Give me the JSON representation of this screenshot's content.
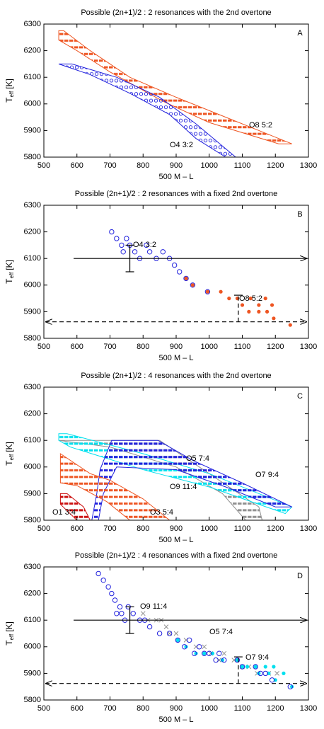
{
  "chart_data": [
    {
      "type": "scatter",
      "title": "Possible (2n+1)/2 : 2 resonances with the 2nd overtone",
      "label": "A",
      "xlabel": "500 M – L",
      "ylabel": {
        "text": "T",
        "subscript": "eff",
        "suffix": "[K]"
      },
      "xlim": [
        500,
        1300
      ],
      "ylim": [
        5800,
        6300
      ],
      "xticks": [
        500,
        600,
        700,
        800,
        900,
        1000,
        1100,
        1200,
        1300
      ],
      "yticks": [
        5800,
        5900,
        6000,
        6100,
        6200,
        6300
      ],
      "series": [
        {
          "shape": "region",
          "fill": "dashes",
          "color": "#ee5522",
          "x": [
            545,
            560,
            640,
            760,
            900,
            1050,
            1250,
            1210,
            1000,
            860,
            700,
            600,
            545
          ],
          "y": [
            6275,
            6275,
            6200,
            6100,
            6025,
            5950,
            5850,
            5850,
            5930,
            6010,
            6120,
            6200,
            6240
          ]
        },
        {
          "shape": "region",
          "fill": "circles",
          "color": "#2222dd",
          "x": [
            545,
            585,
            720,
            850,
            960,
            1080,
            1050,
            960,
            880,
            760,
            640,
            545
          ],
          "y": [
            6150,
            6150,
            6100,
            6025,
            5925,
            5800,
            5800,
            5870,
            5960,
            6040,
            6110,
            6150
          ]
        }
      ],
      "annotations": [
        "O8 5:2",
        "O4 3:2"
      ]
    },
    {
      "type": "scatter",
      "title": "Possible (2n+1)/2 : 2 resonances with a fixed 2nd overtone",
      "label": "B",
      "xlabel": "500 M – L",
      "ylabel": {
        "text": "T",
        "subscript": "eff",
        "suffix": "[K]"
      },
      "xlim": [
        500,
        1300
      ],
      "ylim": [
        5800,
        6300
      ],
      "xticks": [
        500,
        600,
        700,
        800,
        900,
        1000,
        1100,
        1200,
        1300
      ],
      "yticks": [
        5800,
        5900,
        6000,
        6100,
        6200,
        6300
      ],
      "series": [
        {
          "shape": "points",
          "marker": "circle",
          "color": "#2222dd",
          "x": [
            705,
            720,
            735,
            750,
            740,
            760,
            775,
            790,
            810,
            820,
            840,
            860,
            880,
            895,
            910,
            930,
            950,
            995
          ],
          "y": [
            6200,
            6175,
            6150,
            6175,
            6125,
            6150,
            6125,
            6100,
            6150,
            6125,
            6100,
            6125,
            6100,
            6075,
            6050,
            6025,
            6000,
            5975
          ]
        },
        {
          "shape": "points",
          "marker": "dot",
          "color": "#ee5522",
          "x": [
            930,
            950,
            995,
            1035,
            1060,
            1085,
            1100,
            1125,
            1150,
            1170,
            1190,
            1120,
            1150,
            1175,
            1195,
            1245
          ],
          "y": [
            6025,
            6000,
            5975,
            5975,
            5950,
            5950,
            5925,
            5950,
            5925,
            5950,
            5925,
            5900,
            5900,
            5900,
            5875,
            5850
          ]
        }
      ],
      "limits": [
        {
          "x": 760,
          "y": 6100,
          "ylow": 6050,
          "yhigh": 6150,
          "xlow": 590,
          "xhigh": 1300,
          "arrows": "right",
          "dashed": false
        },
        {
          "x": 1088,
          "y": 5862,
          "ylow": 5862,
          "yhigh": 5962,
          "xlow": 500,
          "xhigh": 1300,
          "arrows": "both",
          "dashed": true
        }
      ],
      "annotations": [
        "O4 3:2",
        "O8 5:2"
      ]
    },
    {
      "type": "scatter",
      "title": "Possible (2n+1)/2 : 4 resonances with the 2nd overtone",
      "label": "C",
      "xlabel": "500 M – L",
      "ylabel": {
        "text": "T",
        "subscript": "eff",
        "suffix": "[K]"
      },
      "xlim": [
        500,
        1300
      ],
      "ylim": [
        5800,
        6300
      ],
      "xticks": [
        500,
        600,
        700,
        800,
        900,
        1000,
        1100,
        1200,
        1300
      ],
      "yticks": [
        5800,
        5900,
        6000,
        6100,
        6200,
        6300
      ],
      "series": [
        {
          "shape": "region",
          "fill": "dashes",
          "color": "#909090",
          "x": [
            545,
            850,
            1000,
            1150,
            1160,
            1110,
            1040,
            900,
            700,
            545
          ],
          "y": [
            6100,
            6100,
            5975,
            5850,
            5800,
            5800,
            5900,
            6000,
            6075,
            6100
          ]
        },
        {
          "shape": "region",
          "fill": "dashes",
          "color": "#00e0ee",
          "x": [
            545,
            570,
            800,
            1000,
            1250,
            1230,
            1000,
            800,
            580,
            545
          ],
          "y": [
            6125,
            6125,
            6050,
            5975,
            5850,
            5825,
            5925,
            5990,
            6075,
            6100
          ]
        },
        {
          "shape": "region",
          "fill": "dashes",
          "color": "#2222dd",
          "x": [
            705,
            845,
            950,
            1100,
            1250,
            1200,
            1050,
            900,
            720,
            680,
            665,
            645,
            660,
            670,
            705
          ],
          "y": [
            6100,
            6100,
            6025,
            5940,
            5850,
            5850,
            5925,
            5990,
            6000,
            5900,
            5800,
            5800,
            5900,
            5990,
            6100
          ]
        },
        {
          "shape": "region",
          "fill": "dashes",
          "color": "#ee5522",
          "x": [
            550,
            640,
            700,
            800,
            880,
            760,
            690,
            600,
            550
          ],
          "y": [
            6050,
            5975,
            5950,
            5880,
            5800,
            5800,
            5870,
            5930,
            5940
          ]
        },
        {
          "shape": "region",
          "fill": "dashes",
          "color": "#cc1111",
          "x": [
            550,
            570,
            620,
            640,
            600,
            550
          ],
          "y": [
            5900,
            5900,
            5850,
            5800,
            5800,
            5860
          ]
        }
      ],
      "annotations": [
        "O5 7:4",
        "O7 9:4",
        "O9 11:4",
        "O3 5:4",
        "O1 3:4"
      ]
    },
    {
      "type": "scatter",
      "title": "Possible (2n+1)/2 : 4 resonances with a fixed 2nd overtone",
      "label": "D",
      "xlabel": "500 M – L",
      "ylabel": {
        "text": "T",
        "subscript": "eff",
        "suffix": "[K]"
      },
      "xlim": [
        500,
        1300
      ],
      "ylim": [
        5800,
        6300
      ],
      "xticks": [
        500,
        600,
        700,
        800,
        900,
        1000,
        1100,
        1200,
        1300
      ],
      "yticks": [
        5800,
        5900,
        6000,
        6100,
        6200,
        6300
      ],
      "series": [
        {
          "shape": "points",
          "marker": "cross",
          "color": "#909090",
          "x": [
            800,
            815,
            840,
            855,
            870,
            880,
            900,
            930,
            960,
            985,
            1005,
            1030,
            1045,
            1075,
            1100,
            1120,
            1145,
            1180,
            1205
          ],
          "y": [
            6125,
            6100,
            6100,
            6100,
            6075,
            6050,
            6050,
            6025,
            6000,
            6000,
            5975,
            5950,
            5975,
            5950,
            5925,
            5925,
            5900,
            5900,
            5900
          ]
        },
        {
          "shape": "points",
          "marker": "dot",
          "color": "#00e0ee",
          "x": [
            905,
            930,
            960,
            985,
            1010,
            1040,
            1085,
            1100,
            1115,
            1140,
            1150,
            1170,
            1180,
            1195,
            1200,
            1225,
            1250
          ],
          "y": [
            6025,
            6000,
            5975,
            5975,
            5975,
            5950,
            5950,
            5925,
            5925,
            5925,
            5900,
            5925,
            5900,
            5925,
            5875,
            5900,
            5850
          ]
        },
        {
          "shape": "points",
          "marker": "circle",
          "color": "#2222dd",
          "x": [
            665,
            680,
            695,
            705,
            715,
            730,
            720,
            735,
            745,
            755,
            770,
            790,
            805,
            820,
            850,
            880,
            905,
            925,
            940,
            955,
            970,
            985,
            1000,
            1020,
            1030,
            1045,
            1085,
            1100,
            1140,
            1155,
            1170,
            1190,
            1245
          ],
          "y": [
            6275,
            6250,
            6225,
            6200,
            6175,
            6150,
            6125,
            6125,
            6100,
            6150,
            6125,
            6100,
            6100,
            6075,
            6050,
            6050,
            6025,
            6000,
            6025,
            5975,
            6000,
            5975,
            5975,
            5950,
            5975,
            5950,
            5950,
            5925,
            5925,
            5900,
            5900,
            5875,
            5850
          ]
        }
      ],
      "limits": [
        {
          "x": 760,
          "y": 6100,
          "ylow": 6050,
          "yhigh": 6150,
          "xlow": 590,
          "xhigh": 1300,
          "arrows": "right",
          "dashed": false
        },
        {
          "x": 1088,
          "y": 5862,
          "ylow": 5862,
          "yhigh": 5962,
          "xlow": 500,
          "xhigh": 1300,
          "arrows": "both",
          "dashed": true
        }
      ],
      "annotations": [
        "O9 11:4",
        "O5 7:4",
        "O7 9:4"
      ]
    }
  ]
}
